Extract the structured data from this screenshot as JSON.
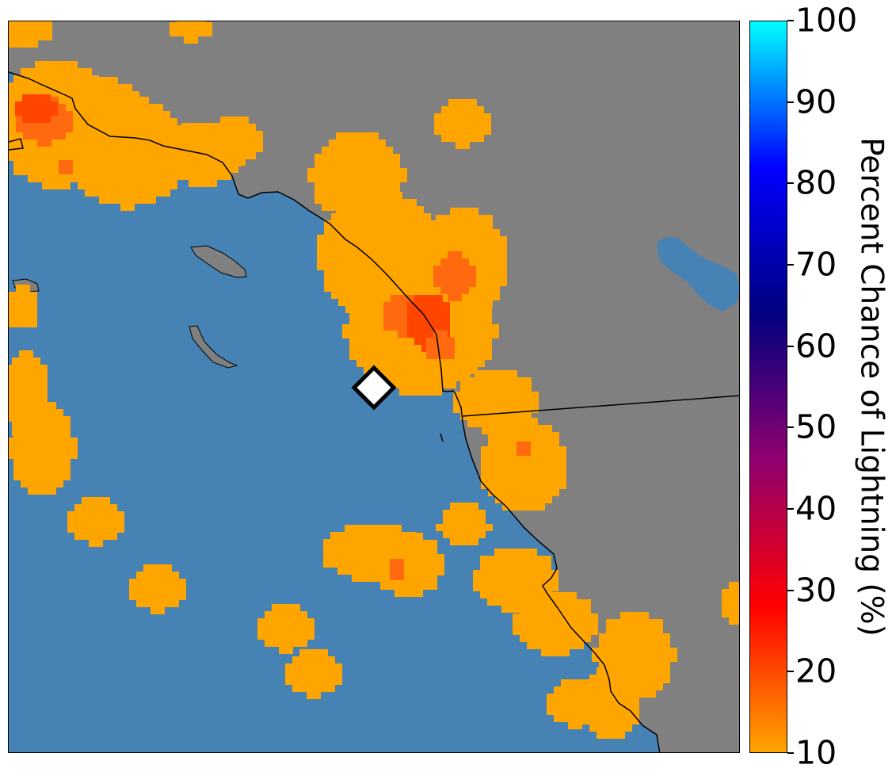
{
  "colors": {
    "ocean": "#4682b4",
    "land": "#808080",
    "low_probability": "#ffa500",
    "mid_probability": "#ff6a10",
    "high_probability": "#ff4500",
    "marker_fill": "#ffffff",
    "marker_stroke": "#000000",
    "coastline": "#000000"
  },
  "map": {
    "marker_icon": "diamond-icon",
    "feature_names": [
      "ocean",
      "land",
      "coastline",
      "state-border",
      "lake",
      "islands",
      "lightning-probability-cells",
      "location-marker"
    ]
  },
  "colorbar": {
    "title": "Percent Chance of Lightning (%)",
    "ticks": [
      "100",
      "90",
      "80",
      "70",
      "60",
      "50",
      "40",
      "30",
      "20",
      "10"
    ],
    "range": [
      10,
      100
    ],
    "colors": [
      "#ffa500",
      "#ff0000",
      "#900070",
      "#000080",
      "#0000ff",
      "#00ffff"
    ]
  }
}
